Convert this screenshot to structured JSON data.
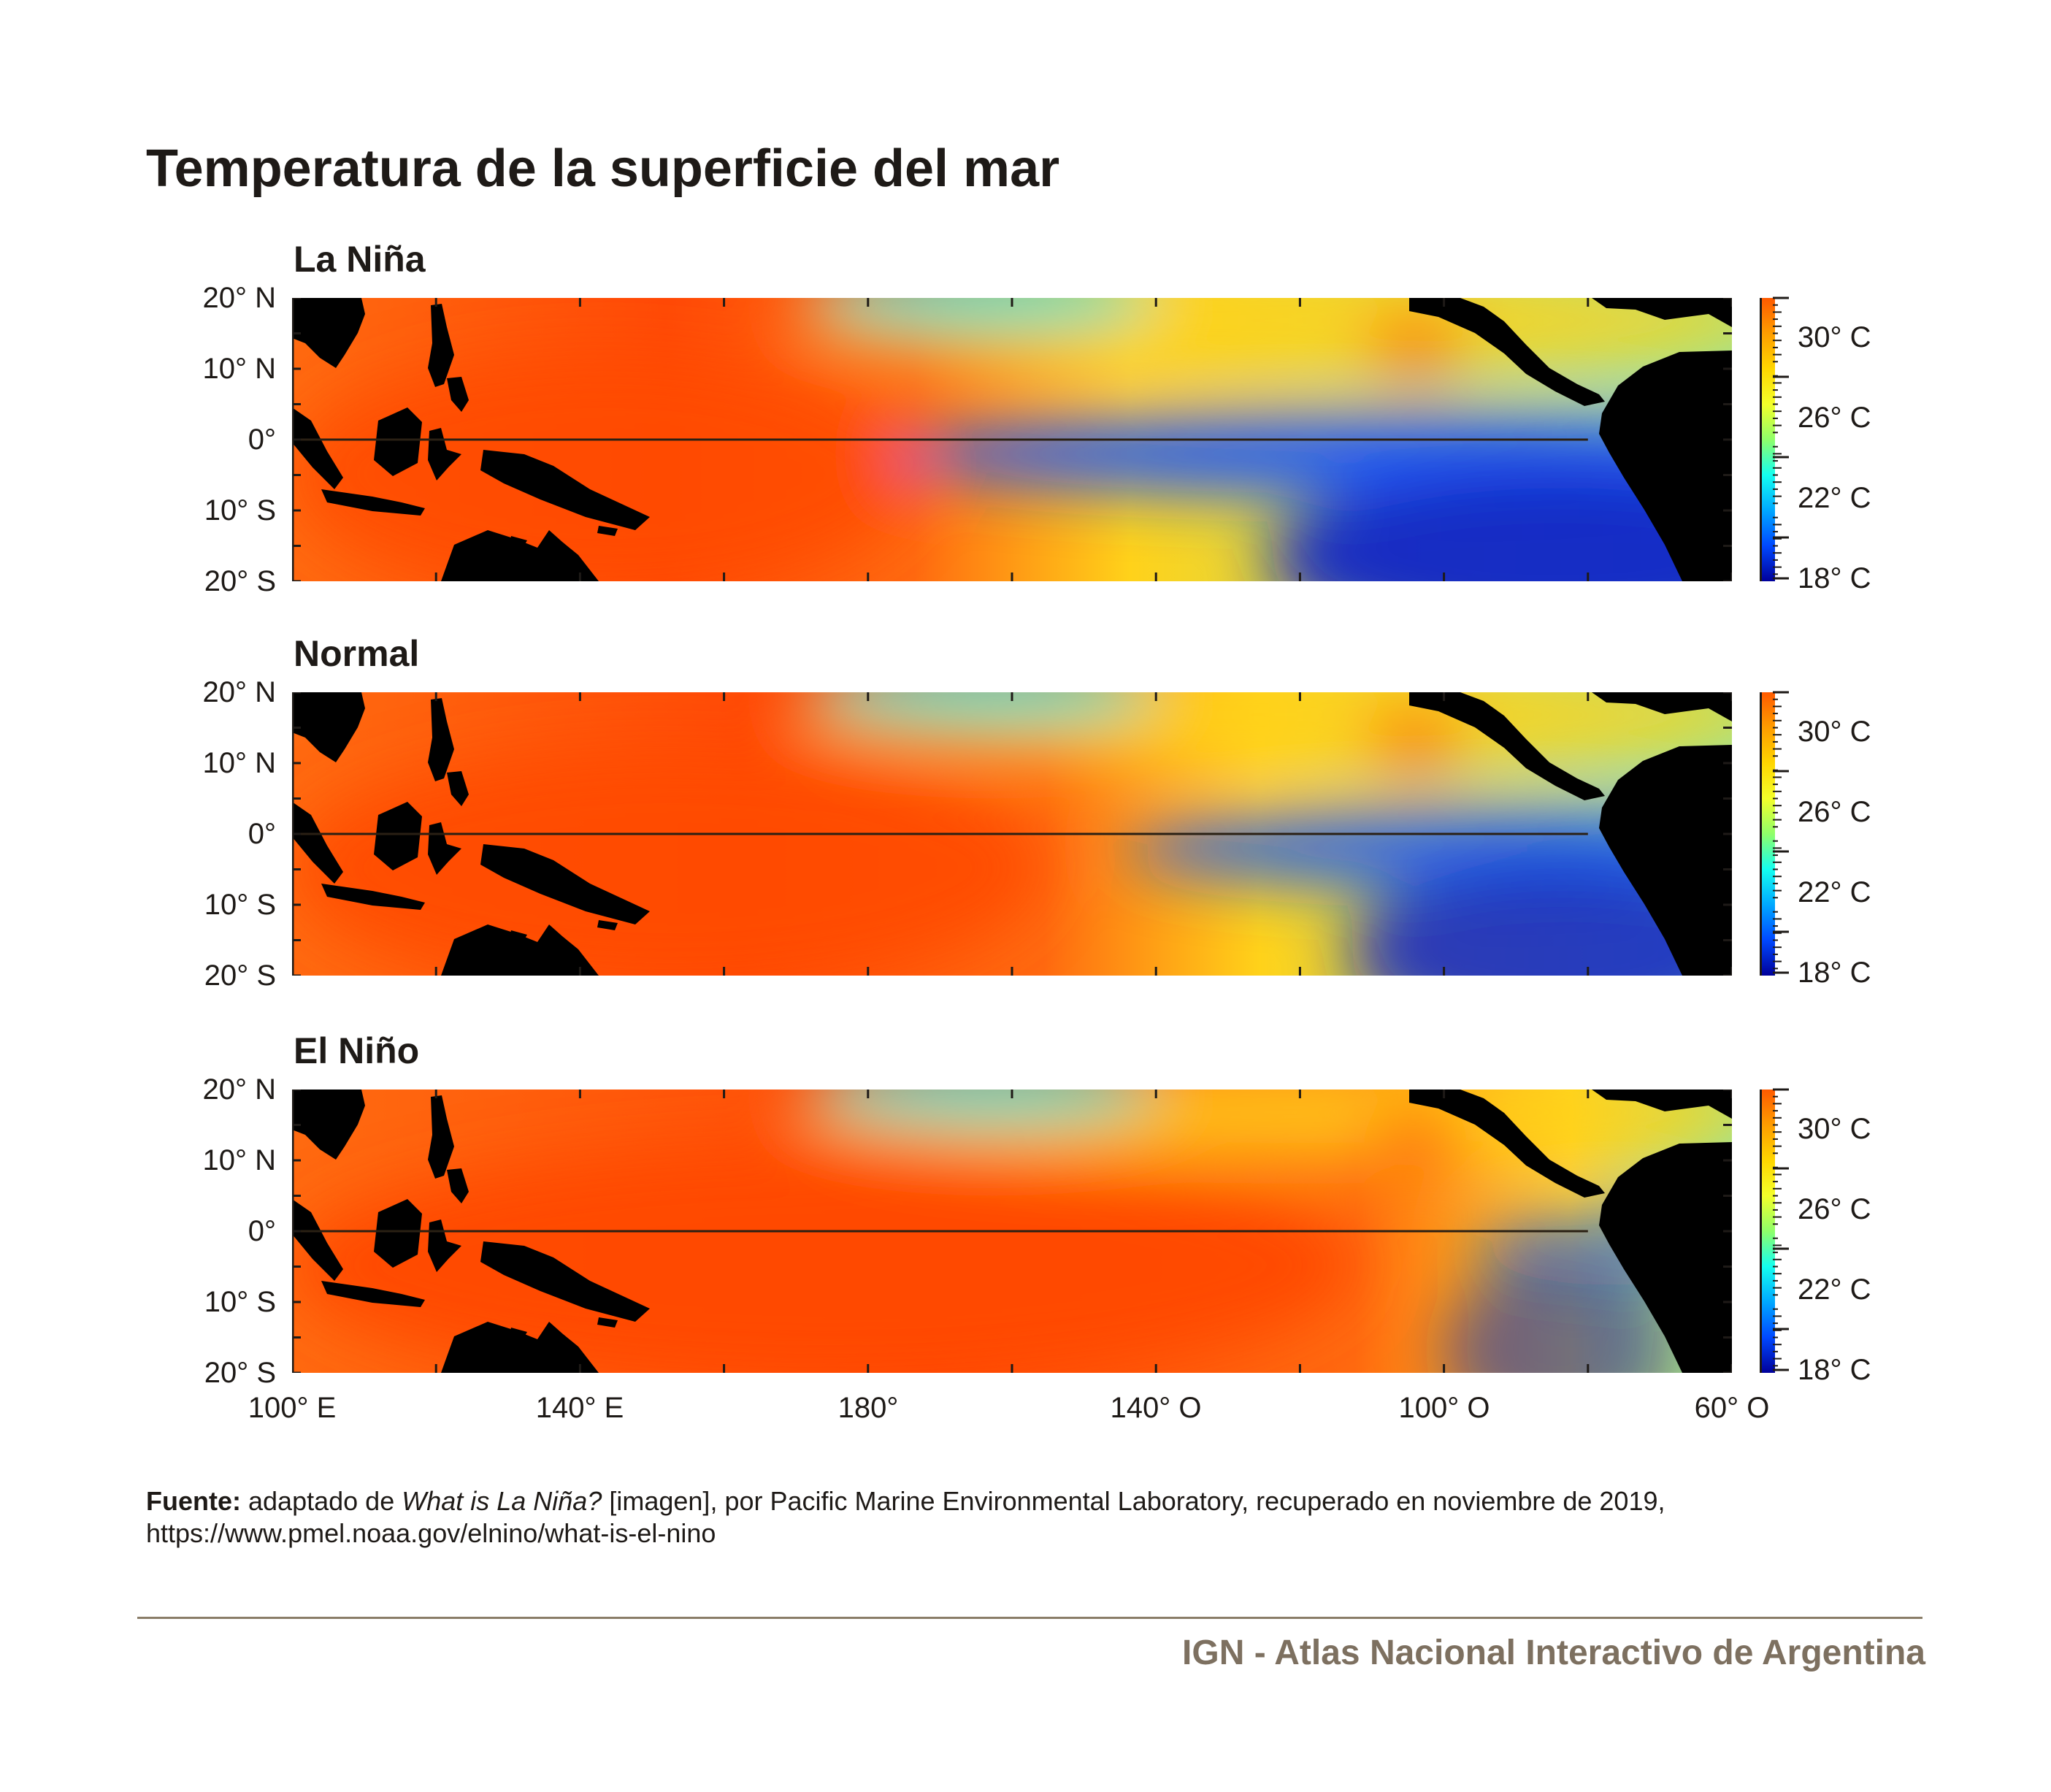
{
  "title": "Temperatura de la superficie del mar",
  "panels": [
    {
      "name": "La Niña",
      "cold_extent": 0.58,
      "warm_extent": 0.48,
      "warm_peak": 0.85,
      "cold_peak": 0.95
    },
    {
      "name": "Normal",
      "cold_extent": 0.42,
      "warm_extent": 0.58,
      "warm_peak": 0.9,
      "cold_peak": 0.85
    },
    {
      "name": "El Niño",
      "cold_extent": 0.18,
      "warm_extent": 0.82,
      "warm_peak": 0.95,
      "cold_peak": 0.55
    }
  ],
  "lat_labels": [
    "20° N",
    "10° N",
    "0°",
    "10° S",
    "20° S"
  ],
  "lon_labels": [
    "100° E",
    "140° E",
    "180°",
    "140° O",
    "100° O",
    "60° O"
  ],
  "colorbar": {
    "labels": [
      "30° C",
      "26° C",
      "22° C",
      "18° C"
    ],
    "stops": [
      "#ff5a00",
      "#ff9d00",
      "#ffd600",
      "#f4ff2a",
      "#8fff6a",
      "#14fff0",
      "#00a8ff",
      "#0048ff",
      "#00009a"
    ]
  },
  "colors": {
    "land": "#000000",
    "equator": "#2a2014",
    "warm": "#ff6a10",
    "hot": "#ff4a06",
    "mid": "#ffd21a",
    "cool": "#8ee6a8",
    "cold": "#1a55ff",
    "deep_cold": "#0a22c8"
  },
  "source": {
    "label": "Fuente:",
    "pre": "adaptado de ",
    "work": "What is La Niña?",
    "post": " [imagen], por Pacific Marine Environmental Laboratory, recuperado en noviembre de 2019,",
    "url": "https://www.pmel.noaa.gov/elnino/what-is-el-nino"
  },
  "footer": "IGN - Atlas Nacional Interactivo de Argentina"
}
